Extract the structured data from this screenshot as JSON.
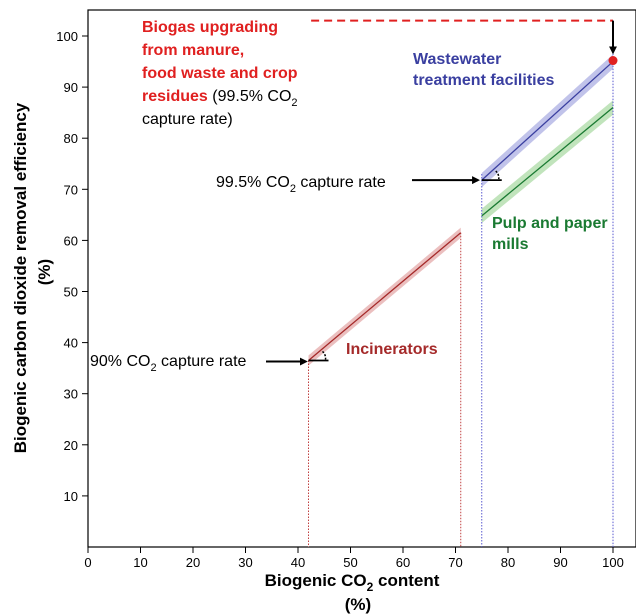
{
  "chart_data": {
    "type": "line",
    "xlabel": "Biogenic CO₂ content",
    "xlabel_unit": "(%)",
    "ylabel": "Biogenic carbon dioxide removal efficiency",
    "ylabel_unit": "(%)",
    "xlim": [
      0,
      100
    ],
    "ylim": [
      0,
      105
    ],
    "xticks": [
      0,
      10,
      20,
      30,
      40,
      50,
      60,
      70,
      80,
      90,
      100
    ],
    "yticks": [
      10,
      20,
      30,
      40,
      50,
      60,
      70,
      80,
      90,
      100
    ],
    "grid": false,
    "series": [
      {
        "name": "Incinerators",
        "color": "#a52a2a",
        "band_color": "#e8b4b4",
        "x": [
          42,
          71
        ],
        "y": [
          36.5,
          61.5
        ],
        "band": 1.0,
        "vlines": [
          42,
          71
        ]
      },
      {
        "name": "Wastewater treatment facilities",
        "color": "#3a3fa0",
        "band_color": "#b6b8e6",
        "x": [
          75,
          100
        ],
        "y": [
          71.8,
          95
        ],
        "band": 1.4
      },
      {
        "name": "Pulp and paper mills",
        "color": "#1a7a32",
        "band_color": "#b6dfb0",
        "x": [
          75,
          100
        ],
        "y": [
          64.8,
          86
        ],
        "band": 1.4
      }
    ],
    "vlines_blue": [
      75,
      100
    ],
    "point": {
      "x": 100,
      "y": 95.2,
      "color": "#e02020"
    },
    "dashed_line": {
      "x": [
        42.5,
        100
      ],
      "y": 103,
      "color": "#e02020"
    },
    "annotations": {
      "biogas_bold_lines": [
        "Biogas upgrading",
        "from manure,",
        "food waste and crop",
        "residues"
      ],
      "biogas_rest_1": " (99.5% CO",
      "biogas_rest_sub": "2",
      "biogas_rest_2": "capture rate)",
      "wastewater_lines": [
        "Wastewater",
        "treatment facilities"
      ],
      "pulp_lines": [
        "Pulp and paper",
        "mills"
      ],
      "incinerators": "Incinerators",
      "capture_995_pre": "99.5% CO",
      "capture_995_sub": "2",
      "capture_995_post": " capture rate",
      "capture_90_pre": "90% CO",
      "capture_90_sub": "2",
      "capture_90_post": " capture rate"
    }
  }
}
